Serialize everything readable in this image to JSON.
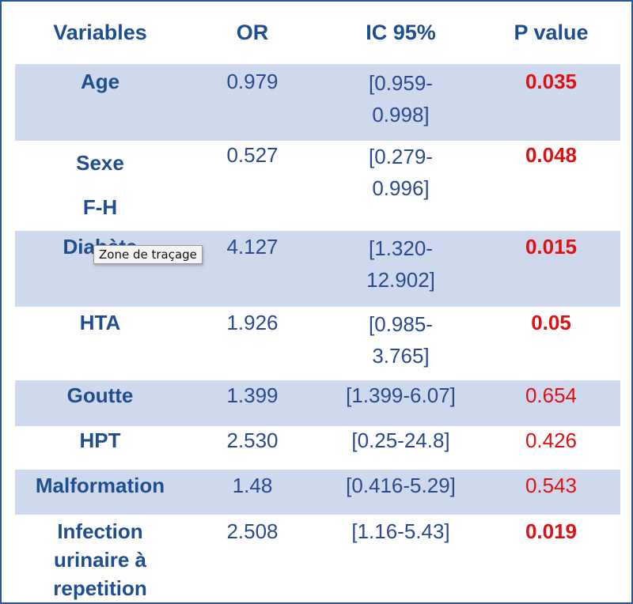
{
  "header": {
    "variables": "Variables",
    "or": "OR",
    "ic": "IC 95%",
    "p": "P value"
  },
  "rows": [
    {
      "variable": [
        "Age"
      ],
      "or": "0.979",
      "ic": [
        "[0.959-",
        "0.998]"
      ],
      "p": "0.035",
      "p_bold": true
    },
    {
      "variable": [
        "Sexe",
        "F-H"
      ],
      "or": "0.527",
      "ic": [
        "[0.279-",
        "0.996]"
      ],
      "p": "0.048",
      "p_bold": true
    },
    {
      "variable": [
        "Diabète"
      ],
      "or": "4.127",
      "ic": [
        "[1.320-",
        "12.902]"
      ],
      "p": "0.015",
      "p_bold": true
    },
    {
      "variable": [
        "HTA"
      ],
      "or": "1.926",
      "ic": [
        "[0.985-",
        "3.765]"
      ],
      "p": "0.05",
      "p_bold": true
    },
    {
      "variable": [
        "Goutte"
      ],
      "or": "1.399",
      "ic": [
        "[1.399-6.07]"
      ],
      "p": "0.654",
      "p_bold": false
    },
    {
      "variable": [
        "HPT"
      ],
      "or": "2.530",
      "ic": [
        "[0.25-24.8]"
      ],
      "p": "0.426",
      "p_bold": false
    },
    {
      "variable": [
        "Malformation"
      ],
      "or": "1.48",
      "ic": [
        "[0.416-5.29]"
      ],
      "p": "0.543",
      "p_bold": false
    },
    {
      "variable": [
        "Infection",
        "urinaire à",
        "repetition"
      ],
      "or": "2.508",
      "ic": [
        "[1.16-5.43]"
      ],
      "p": "0.019",
      "p_bold": true
    }
  ],
  "tooltip": "Zone de traçage",
  "colors": {
    "header_text": "#1f4e8f",
    "shaded_row": "#cfd9ed",
    "p_value": "#e01010",
    "border": "#2f5597"
  }
}
